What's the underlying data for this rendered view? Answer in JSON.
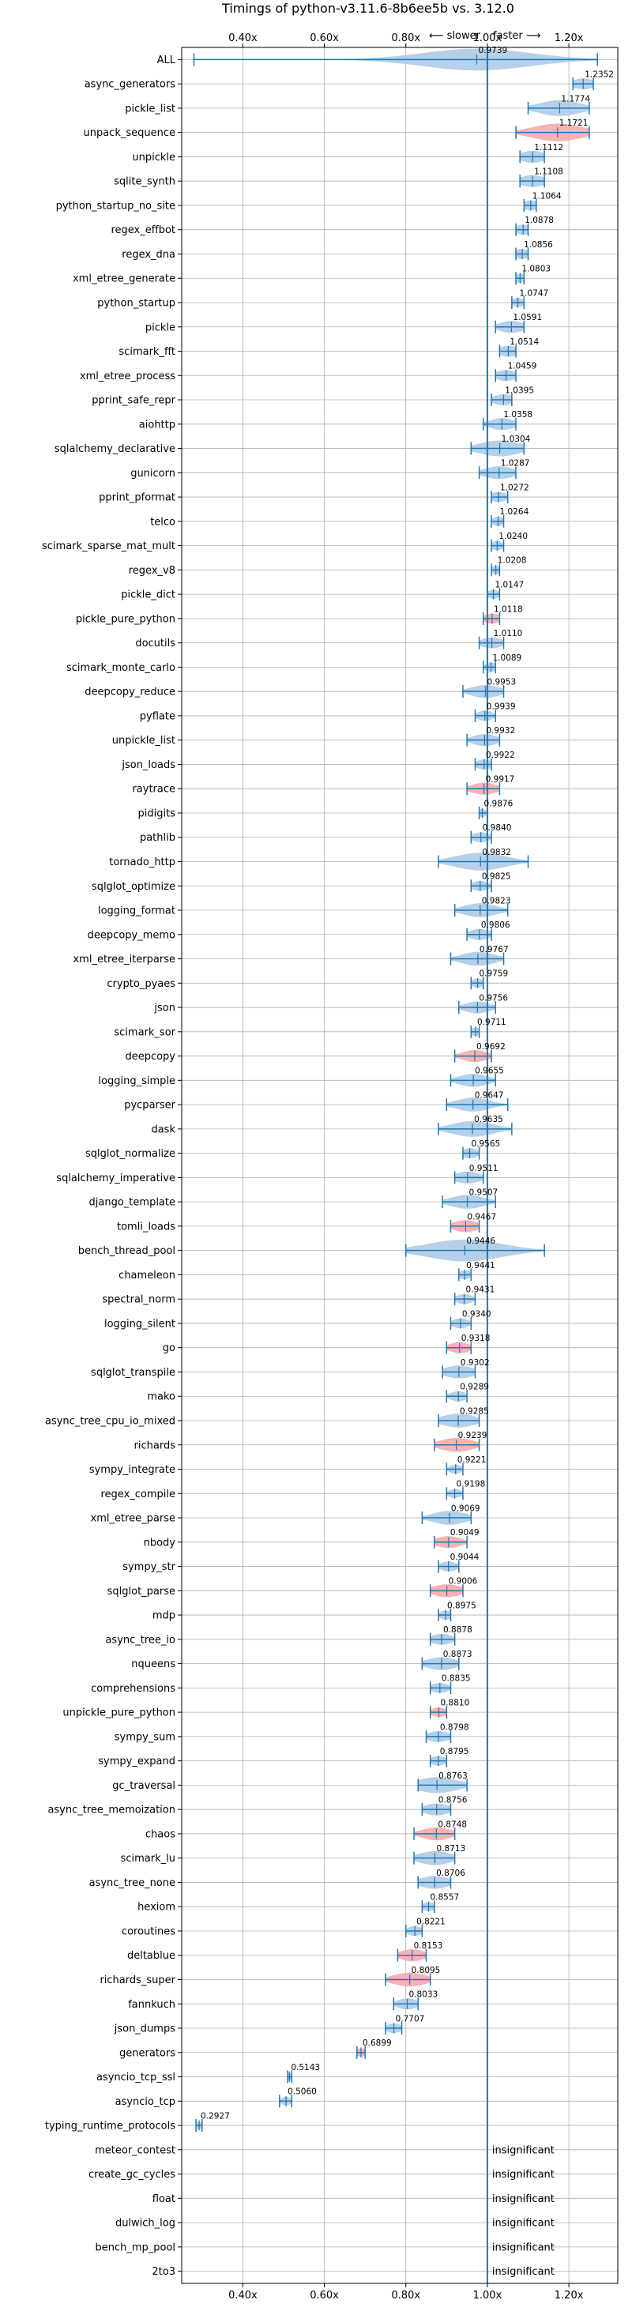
{
  "chart_data": {
    "type": "violin",
    "title": "Timings of python-v3.11.6-8b6ee5b vs. 3.12.0",
    "direction_labels": {
      "slower": "⟵ slower",
      "faster": "faster ⟶"
    },
    "xlim": [
      0.25,
      1.32
    ],
    "x_ticks": [
      0.4,
      0.6,
      0.8,
      1.0,
      1.2
    ],
    "x_tick_labels": [
      "0.40x",
      "0.60x",
      "0.80x",
      "1.00x",
      "1.20x"
    ],
    "reference_line": 1.0,
    "grid": true,
    "colors": {
      "faster": "#a8c8e4",
      "slower": "#f4a6a6",
      "line": "#1f77b4"
    },
    "insignificant_label": "insignificant",
    "benchmarks": [
      {
        "name": "ALL",
        "value": 0.9739,
        "color": "blue",
        "lo": 0.28,
        "hi": 1.27,
        "spread": 0.13
      },
      {
        "name": "async_generators",
        "value": 1.2352,
        "color": "blue",
        "lo": 1.21,
        "hi": 1.26,
        "spread": 0.025
      },
      {
        "name": "pickle_list",
        "value": 1.1774,
        "color": "blue",
        "lo": 1.1,
        "hi": 1.25,
        "spread": 0.05
      },
      {
        "name": "unpack_sequence",
        "value": 1.1721,
        "color": "red",
        "lo": 1.07,
        "hi": 1.25,
        "spread": 0.06
      },
      {
        "name": "unpickle",
        "value": 1.1112,
        "color": "blue",
        "lo": 1.08,
        "hi": 1.14,
        "spread": 0.03
      },
      {
        "name": "sqlite_synth",
        "value": 1.1108,
        "color": "blue",
        "lo": 1.08,
        "hi": 1.14,
        "spread": 0.03
      },
      {
        "name": "python_startup_no_site",
        "value": 1.1064,
        "color": "blue",
        "lo": 1.09,
        "hi": 1.12,
        "spread": 0.02
      },
      {
        "name": "regex_effbot",
        "value": 1.0878,
        "color": "blue",
        "lo": 1.07,
        "hi": 1.1,
        "spread": 0.02
      },
      {
        "name": "regex_dna",
        "value": 1.0856,
        "color": "blue",
        "lo": 1.07,
        "hi": 1.1,
        "spread": 0.02
      },
      {
        "name": "xml_etree_generate",
        "value": 1.0803,
        "color": "blue",
        "lo": 1.07,
        "hi": 1.09,
        "spread": 0.015
      },
      {
        "name": "python_startup",
        "value": 1.0747,
        "color": "blue",
        "lo": 1.06,
        "hi": 1.09,
        "spread": 0.015
      },
      {
        "name": "pickle",
        "value": 1.0591,
        "color": "blue",
        "lo": 1.02,
        "hi": 1.09,
        "spread": 0.03
      },
      {
        "name": "scimark_fft",
        "value": 1.0514,
        "color": "blue",
        "lo": 1.03,
        "hi": 1.07,
        "spread": 0.025
      },
      {
        "name": "xml_etree_process",
        "value": 1.0459,
        "color": "blue",
        "lo": 1.02,
        "hi": 1.07,
        "spread": 0.025
      },
      {
        "name": "pprint_safe_repr",
        "value": 1.0395,
        "color": "blue",
        "lo": 1.01,
        "hi": 1.06,
        "spread": 0.025
      },
      {
        "name": "aiohttp",
        "value": 1.0358,
        "color": "blue",
        "lo": 0.99,
        "hi": 1.07,
        "spread": 0.03
      },
      {
        "name": "sqlalchemy_declarative",
        "value": 1.0304,
        "color": "blue",
        "lo": 0.96,
        "hi": 1.09,
        "spread": 0.05
      },
      {
        "name": "gunicorn",
        "value": 1.0287,
        "color": "blue",
        "lo": 0.98,
        "hi": 1.07,
        "spread": 0.035
      },
      {
        "name": "pprint_pformat",
        "value": 1.0272,
        "color": "blue",
        "lo": 1.01,
        "hi": 1.05,
        "spread": 0.02
      },
      {
        "name": "telco",
        "value": 1.0264,
        "color": "blue",
        "lo": 1.01,
        "hi": 1.04,
        "spread": 0.015
      },
      {
        "name": "scimark_sparse_mat_mult",
        "value": 1.024,
        "color": "blue",
        "lo": 1.01,
        "hi": 1.04,
        "spread": 0.015
      },
      {
        "name": "regex_v8",
        "value": 1.0208,
        "color": "blue",
        "lo": 1.01,
        "hi": 1.03,
        "spread": 0.012
      },
      {
        "name": "pickle_dict",
        "value": 1.0147,
        "color": "blue",
        "lo": 1.0,
        "hi": 1.03,
        "spread": 0.015
      },
      {
        "name": "pickle_pure_python",
        "value": 1.0118,
        "color": "red",
        "lo": 0.99,
        "hi": 1.03,
        "spread": 0.02
      },
      {
        "name": "docutils",
        "value": 1.011,
        "color": "blue",
        "lo": 0.98,
        "hi": 1.04,
        "spread": 0.025
      },
      {
        "name": "scimark_monte_carlo",
        "value": 1.0089,
        "color": "blue",
        "lo": 0.99,
        "hi": 1.02,
        "spread": 0.015
      },
      {
        "name": "deepcopy_reduce",
        "value": 0.9953,
        "color": "blue",
        "lo": 0.94,
        "hi": 1.04,
        "spread": 0.035
      },
      {
        "name": "pyflate",
        "value": 0.9939,
        "color": "blue",
        "lo": 0.97,
        "hi": 1.02,
        "spread": 0.02
      },
      {
        "name": "unpickle_list",
        "value": 0.9932,
        "color": "blue",
        "lo": 0.95,
        "hi": 1.03,
        "spread": 0.03
      },
      {
        "name": "json_loads",
        "value": 0.9922,
        "color": "blue",
        "lo": 0.97,
        "hi": 1.01,
        "spread": 0.02
      },
      {
        "name": "raytrace",
        "value": 0.9917,
        "color": "red",
        "lo": 0.95,
        "hi": 1.03,
        "spread": 0.03
      },
      {
        "name": "pidigits",
        "value": 0.9876,
        "color": "blue",
        "lo": 0.98,
        "hi": 1.0,
        "spread": 0.01
      },
      {
        "name": "pathlib",
        "value": 0.984,
        "color": "blue",
        "lo": 0.96,
        "hi": 1.01,
        "spread": 0.02
      },
      {
        "name": "tornado_http",
        "value": 0.9832,
        "color": "blue",
        "lo": 0.88,
        "hi": 1.1,
        "spread": 0.06
      },
      {
        "name": "sqlglot_optimize",
        "value": 0.9825,
        "color": "blue",
        "lo": 0.96,
        "hi": 1.01,
        "spread": 0.02
      },
      {
        "name": "logging_format",
        "value": 0.9823,
        "color": "blue",
        "lo": 0.92,
        "hi": 1.05,
        "spread": 0.04
      },
      {
        "name": "deepcopy_memo",
        "value": 0.9806,
        "color": "blue",
        "lo": 0.95,
        "hi": 1.01,
        "spread": 0.025
      },
      {
        "name": "xml_etree_iterparse",
        "value": 0.9767,
        "color": "blue",
        "lo": 0.91,
        "hi": 1.04,
        "spread": 0.04
      },
      {
        "name": "crypto_pyaes",
        "value": 0.9759,
        "color": "blue",
        "lo": 0.96,
        "hi": 0.99,
        "spread": 0.015
      },
      {
        "name": "json",
        "value": 0.9756,
        "color": "blue",
        "lo": 0.93,
        "hi": 1.02,
        "spread": 0.03
      },
      {
        "name": "scimark_sor",
        "value": 0.9711,
        "color": "blue",
        "lo": 0.96,
        "hi": 0.98,
        "spread": 0.012
      },
      {
        "name": "deepcopy",
        "value": 0.9692,
        "color": "red",
        "lo": 0.92,
        "hi": 1.01,
        "spread": 0.03
      },
      {
        "name": "logging_simple",
        "value": 0.9655,
        "color": "blue",
        "lo": 0.91,
        "hi": 1.02,
        "spread": 0.035
      },
      {
        "name": "pycparser",
        "value": 0.9647,
        "color": "blue",
        "lo": 0.9,
        "hi": 1.05,
        "spread": 0.04
      },
      {
        "name": "dask",
        "value": 0.9635,
        "color": "blue",
        "lo": 0.88,
        "hi": 1.06,
        "spread": 0.05
      },
      {
        "name": "sqlglot_normalize",
        "value": 0.9565,
        "color": "blue",
        "lo": 0.94,
        "hi": 0.98,
        "spread": 0.02
      },
      {
        "name": "sqlalchemy_imperative",
        "value": 0.9511,
        "color": "blue",
        "lo": 0.92,
        "hi": 0.99,
        "spread": 0.03
      },
      {
        "name": "django_template",
        "value": 0.9507,
        "color": "blue",
        "lo": 0.89,
        "hi": 1.02,
        "spread": 0.04
      },
      {
        "name": "tomli_loads",
        "value": 0.9467,
        "color": "red",
        "lo": 0.91,
        "hi": 0.98,
        "spread": 0.03
      },
      {
        "name": "bench_thread_pool",
        "value": 0.9446,
        "color": "blue",
        "lo": 0.8,
        "hi": 1.14,
        "spread": 0.09
      },
      {
        "name": "chameleon",
        "value": 0.9441,
        "color": "blue",
        "lo": 0.93,
        "hi": 0.96,
        "spread": 0.015
      },
      {
        "name": "spectral_norm",
        "value": 0.9431,
        "color": "blue",
        "lo": 0.92,
        "hi": 0.97,
        "spread": 0.02
      },
      {
        "name": "logging_silent",
        "value": 0.934,
        "color": "blue",
        "lo": 0.91,
        "hi": 0.96,
        "spread": 0.02
      },
      {
        "name": "go",
        "value": 0.9318,
        "color": "red",
        "lo": 0.9,
        "hi": 0.96,
        "spread": 0.025
      },
      {
        "name": "sqlglot_transpile",
        "value": 0.9302,
        "color": "blue",
        "lo": 0.89,
        "hi": 0.97,
        "spread": 0.035
      },
      {
        "name": "mako",
        "value": 0.9289,
        "color": "blue",
        "lo": 0.9,
        "hi": 0.95,
        "spread": 0.02
      },
      {
        "name": "async_tree_cpu_io_mixed",
        "value": 0.9285,
        "color": "blue",
        "lo": 0.88,
        "hi": 0.98,
        "spread": 0.04
      },
      {
        "name": "richards",
        "value": 0.9239,
        "color": "red",
        "lo": 0.87,
        "hi": 0.98,
        "spread": 0.04
      },
      {
        "name": "sympy_integrate",
        "value": 0.9221,
        "color": "blue",
        "lo": 0.9,
        "hi": 0.94,
        "spread": 0.015
      },
      {
        "name": "regex_compile",
        "value": 0.9198,
        "color": "blue",
        "lo": 0.9,
        "hi": 0.94,
        "spread": 0.015
      },
      {
        "name": "xml_etree_parse",
        "value": 0.9069,
        "color": "blue",
        "lo": 0.84,
        "hi": 0.96,
        "spread": 0.04
      },
      {
        "name": "nbody",
        "value": 0.9049,
        "color": "red",
        "lo": 0.87,
        "hi": 0.95,
        "spread": 0.03
      },
      {
        "name": "sympy_str",
        "value": 0.9044,
        "color": "blue",
        "lo": 0.88,
        "hi": 0.93,
        "spread": 0.02
      },
      {
        "name": "sqlglot_parse",
        "value": 0.9006,
        "color": "red",
        "lo": 0.86,
        "hi": 0.94,
        "spread": 0.035
      },
      {
        "name": "mdp",
        "value": 0.8975,
        "color": "blue",
        "lo": 0.88,
        "hi": 0.91,
        "spread": 0.015
      },
      {
        "name": "async_tree_io",
        "value": 0.8878,
        "color": "blue",
        "lo": 0.86,
        "hi": 0.92,
        "spread": 0.025
      },
      {
        "name": "nqueens",
        "value": 0.8873,
        "color": "blue",
        "lo": 0.84,
        "hi": 0.93,
        "spread": 0.035
      },
      {
        "name": "comprehensions",
        "value": 0.8835,
        "color": "blue",
        "lo": 0.86,
        "hi": 0.91,
        "spread": 0.02
      },
      {
        "name": "unpickle_pure_python",
        "value": 0.881,
        "color": "red",
        "lo": 0.86,
        "hi": 0.9,
        "spread": 0.018
      },
      {
        "name": "sympy_sum",
        "value": 0.8798,
        "color": "blue",
        "lo": 0.85,
        "hi": 0.91,
        "spread": 0.025
      },
      {
        "name": "sympy_expand",
        "value": 0.8795,
        "color": "blue",
        "lo": 0.86,
        "hi": 0.9,
        "spread": 0.018
      },
      {
        "name": "gc_traversal",
        "value": 0.8763,
        "color": "blue",
        "lo": 0.83,
        "hi": 0.95,
        "spread": 0.05
      },
      {
        "name": "async_tree_memoization",
        "value": 0.8756,
        "color": "blue",
        "lo": 0.84,
        "hi": 0.91,
        "spread": 0.03
      },
      {
        "name": "chaos",
        "value": 0.8748,
        "color": "red",
        "lo": 0.82,
        "hi": 0.92,
        "spread": 0.035
      },
      {
        "name": "scimark_lu",
        "value": 0.8713,
        "color": "blue",
        "lo": 0.82,
        "hi": 0.92,
        "spread": 0.04
      },
      {
        "name": "async_tree_none",
        "value": 0.8706,
        "color": "blue",
        "lo": 0.83,
        "hi": 0.91,
        "spread": 0.035
      },
      {
        "name": "hexiom",
        "value": 0.8557,
        "color": "blue",
        "lo": 0.84,
        "hi": 0.87,
        "spread": 0.015
      },
      {
        "name": "coroutines",
        "value": 0.8221,
        "color": "blue",
        "lo": 0.8,
        "hi": 0.84,
        "spread": 0.018
      },
      {
        "name": "deltablue",
        "value": 0.8153,
        "color": "red",
        "lo": 0.78,
        "hi": 0.85,
        "spread": 0.03
      },
      {
        "name": "richards_super",
        "value": 0.8095,
        "color": "red",
        "lo": 0.75,
        "hi": 0.86,
        "spread": 0.04
      },
      {
        "name": "fannkuch",
        "value": 0.8033,
        "color": "blue",
        "lo": 0.77,
        "hi": 0.83,
        "spread": 0.025
      },
      {
        "name": "json_dumps",
        "value": 0.7707,
        "color": "blue",
        "lo": 0.75,
        "hi": 0.79,
        "spread": 0.018
      },
      {
        "name": "generators",
        "value": 0.6899,
        "color": "red",
        "lo": 0.68,
        "hi": 0.7,
        "spread": 0.012
      },
      {
        "name": "asyncio_tcp_ssl",
        "value": 0.5143,
        "color": "blue",
        "lo": 0.51,
        "hi": 0.52,
        "spread": 0.008
      },
      {
        "name": "asyncio_tcp",
        "value": 0.506,
        "color": "blue",
        "lo": 0.49,
        "hi": 0.52,
        "spread": 0.012
      },
      {
        "name": "typing_runtime_protocols",
        "value": 0.2927,
        "color": "blue",
        "lo": 0.285,
        "hi": 0.3,
        "spread": 0.008
      },
      {
        "name": "meteor_contest",
        "value": null
      },
      {
        "name": "create_gc_cycles",
        "value": null
      },
      {
        "name": "float",
        "value": null
      },
      {
        "name": "dulwich_log",
        "value": null
      },
      {
        "name": "bench_mp_pool",
        "value": null
      },
      {
        "name": "2to3",
        "value": null
      }
    ]
  }
}
